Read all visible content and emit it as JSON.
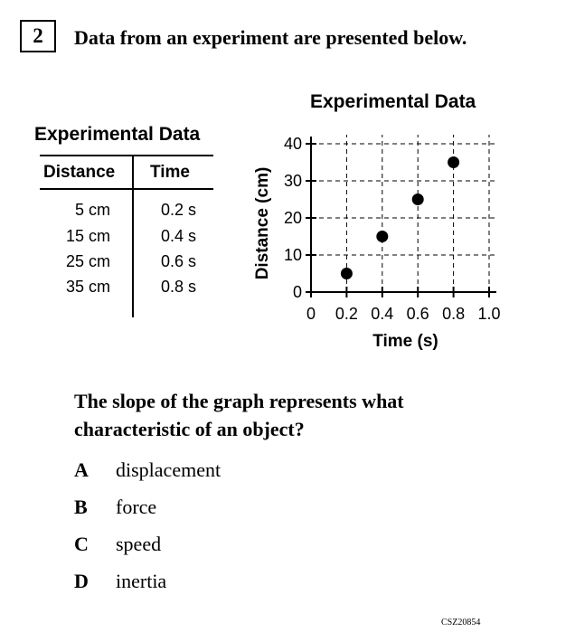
{
  "question_number": "2",
  "intro": "Data from an experiment are presented below.",
  "table": {
    "title": "Experimental Data",
    "headers": [
      "Distance",
      "Time"
    ],
    "rows": [
      [
        "5 cm",
        "0.2 s"
      ],
      [
        "15 cm",
        "0.4 s"
      ],
      [
        "25 cm",
        "0.6 s"
      ],
      [
        "35 cm",
        "0.8 s"
      ]
    ]
  },
  "chart_data": {
    "type": "scatter",
    "title": "Experimental Data",
    "xlabel": "Time (s)",
    "ylabel": "Distance (cm)",
    "xlim": [
      0,
      1.0
    ],
    "ylim": [
      0,
      40
    ],
    "x_ticks": [
      "0",
      "0.2",
      "0.4",
      "0.6",
      "0.8",
      "1.0"
    ],
    "y_ticks": [
      "0",
      "10",
      "20",
      "30",
      "40"
    ],
    "grid": "dashed",
    "points": [
      {
        "x": 0.2,
        "y": 5
      },
      {
        "x": 0.4,
        "y": 15
      },
      {
        "x": 0.6,
        "y": 25
      },
      {
        "x": 0.8,
        "y": 35
      }
    ]
  },
  "question": {
    "line1": "The slope of the graph represents what",
    "line2": "characteristic of an object?"
  },
  "choices": [
    {
      "letter": "A",
      "text": "displacement"
    },
    {
      "letter": "B",
      "text": "force"
    },
    {
      "letter": "C",
      "text": "speed"
    },
    {
      "letter": "D",
      "text": "inertia"
    }
  ],
  "item_code": "CSZ20854"
}
